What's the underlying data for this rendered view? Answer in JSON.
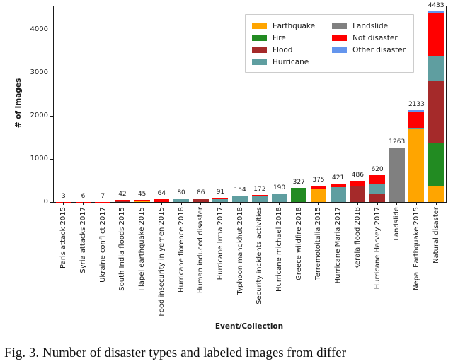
{
  "figure": {
    "caption": "Fig. 3. Number of disaster types and labeled images from differ"
  },
  "chart_data": {
    "type": "stacked_bar",
    "title": "",
    "xlabel": "Event/Collection",
    "ylabel": "# of images",
    "ylim": [
      0,
      4542
    ],
    "yticks": [
      0,
      1000,
      2000,
      3000,
      4000
    ],
    "grid": false,
    "legend_position": "upper center, two columns, framed",
    "categories": [
      "Paris attack 2015",
      "Syria attacks 2017",
      "Ukraine conflict 2017",
      "South India floods 2015",
      "Illapel earthquake 2015",
      "Food insecurity in yemen 2015",
      "Hurricane florence 2018",
      "Human induced disaster",
      "Hurricane Irma 2017",
      "Typhoon mangkhut 2018",
      "Security incidents activities",
      "Hurricane michael 2018",
      "Greece wildfire 2018",
      "Terremotoitalia 2015",
      "Hurricane Maria 2017",
      "Kerala flood 2018",
      "Hurricane Harvey 2017",
      "Landslide",
      "Nepal Earthquake 2015",
      "Natural disaster"
    ],
    "totals": [
      3,
      6,
      7,
      42,
      45,
      64,
      80,
      86,
      91,
      154,
      172,
      190,
      327,
      375,
      421,
      486,
      620,
      1263,
      2133,
      4433
    ],
    "series": [
      {
        "name": "Earthquake",
        "color": "#FFA500",
        "values": [
          0,
          0,
          0,
          0,
          40,
          0,
          0,
          0,
          0,
          0,
          0,
          0,
          0,
          290,
          0,
          0,
          0,
          0,
          1700,
          380
        ]
      },
      {
        "name": "Fire",
        "color": "#228B22",
        "values": [
          0,
          0,
          0,
          0,
          0,
          0,
          0,
          0,
          0,
          0,
          0,
          0,
          327,
          0,
          0,
          0,
          0,
          0,
          0,
          1000
        ]
      },
      {
        "name": "Flood",
        "color": "#A52A2A",
        "values": [
          0,
          0,
          0,
          20,
          0,
          0,
          0,
          78,
          0,
          0,
          0,
          0,
          0,
          0,
          0,
          370,
          200,
          0,
          0,
          1440
        ]
      },
      {
        "name": "Hurricane",
        "color": "#5F9EA0",
        "values": [
          0,
          0,
          0,
          0,
          0,
          0,
          62,
          0,
          85,
          140,
          150,
          175,
          0,
          0,
          350,
          0,
          210,
          0,
          16,
          570
        ]
      },
      {
        "name": "Landslide",
        "color": "#808080",
        "values": [
          0,
          0,
          0,
          0,
          0,
          0,
          0,
          0,
          0,
          0,
          0,
          0,
          0,
          0,
          0,
          0,
          0,
          1263,
          0,
          0
        ]
      },
      {
        "name": "Not disaster",
        "color": "#FF0000",
        "values": [
          3,
          6,
          7,
          22,
          5,
          64,
          18,
          8,
          6,
          14,
          22,
          15,
          0,
          85,
          71,
          116,
          210,
          0,
          380,
          1005
        ]
      },
      {
        "name": "Other disaster",
        "color": "#6495ED",
        "values": [
          0,
          0,
          0,
          0,
          0,
          0,
          0,
          0,
          0,
          0,
          0,
          0,
          0,
          0,
          0,
          0,
          0,
          0,
          37,
          38
        ]
      }
    ],
    "legend_columns": [
      [
        "Earthquake",
        "Fire",
        "Flood",
        "Hurricane"
      ],
      [
        "Landslide",
        "Not disaster",
        "Other disaster"
      ]
    ]
  }
}
